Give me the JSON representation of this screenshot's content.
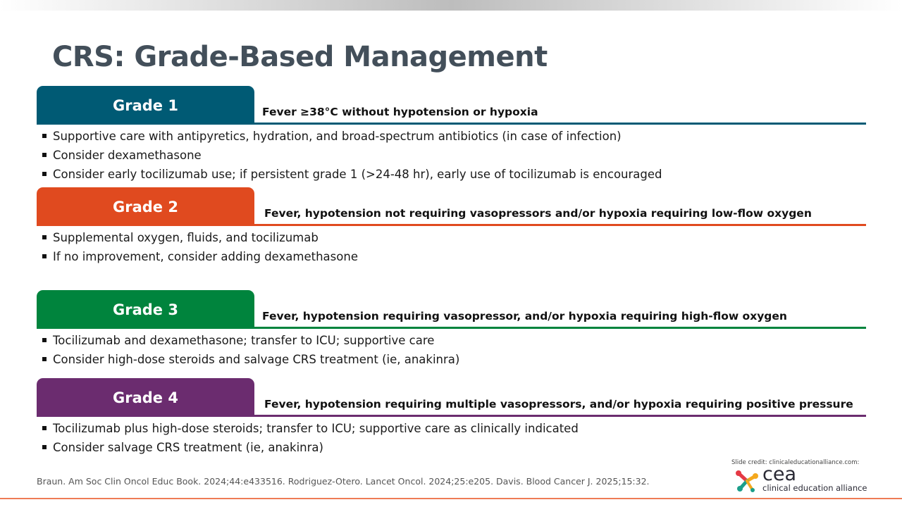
{
  "title": "CRS: Grade-Based Management",
  "grades": [
    {
      "label": "Grade 1",
      "color": "#005a74",
      "desc": "Fever ≥38°C without hypotension or hypoxia",
      "bullets": [
        "Supportive care with antipyretics, hydration, and broad-spectrum antibiotics (in case of infection)",
        "Consider dexamethasone",
        "Consider early tocilizumab use; if persistent grade 1 (>24-48 hr), early use of tocilizumab is encouraged"
      ]
    },
    {
      "label": "Grade 2",
      "color": "#e04a1f",
      "desc": "Fever, hypotension not requiring vasopressors and/or hypoxia requiring low-flow oxygen",
      "bullets": [
        "Supplemental oxygen, fluids, and tocilizumab",
        "If no improvement, consider adding dexamethasone"
      ]
    },
    {
      "label": "Grade 3",
      "color": "#00843d",
      "desc": "Fever, hypotension requiring vasopressor, and/or hypoxia requiring high-flow oxygen",
      "bullets": [
        "Tocilizumab and dexamethasone; transfer to ICU; supportive care",
        "Consider high-dose steroids and salvage CRS treatment (ie, anakinra)"
      ]
    },
    {
      "label": "Grade 4",
      "color": "#6b2c6f",
      "desc": "Fever, hypotension requiring multiple vasopressors, and/or hypoxia requiring positive pressure",
      "bullets": [
        "Tocilizumab plus high-dose steroids; transfer to ICU; supportive care as clinically indicated",
        "Consider salvage CRS treatment (ie, anakinra)"
      ]
    }
  ],
  "footer": {
    "references": "Braun. Am Soc Clin Oncol Educ Book. 2024;44:e433516. Rodriguez-Otero. Lancet Oncol. 2024;25:e205. Davis. Blood Cancer J. 2025;15:32.",
    "credit": "Slide credit: clinicaleducationalliance.com:",
    "logo_short": "cea",
    "logo_full": "clinical education alliance"
  }
}
